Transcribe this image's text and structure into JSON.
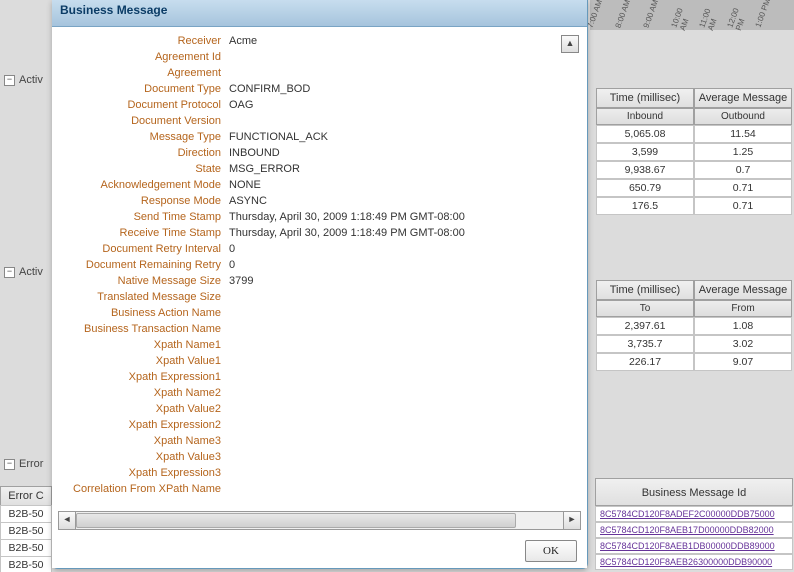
{
  "dialog": {
    "title": "Business Message",
    "ok": "OK",
    "rows": [
      {
        "label": "Receiver",
        "value": "Acme"
      },
      {
        "label": "Agreement Id",
        "value": ""
      },
      {
        "label": "Agreement",
        "value": ""
      },
      {
        "label": "Document Type",
        "value": "CONFIRM_BOD"
      },
      {
        "label": "Document Protocol",
        "value": "OAG"
      },
      {
        "label": "Document Version",
        "value": ""
      },
      {
        "label": "Message Type",
        "value": "FUNCTIONAL_ACK"
      },
      {
        "label": "Direction",
        "value": "INBOUND"
      },
      {
        "label": "State",
        "value": "MSG_ERROR"
      },
      {
        "label": "Acknowledgement Mode",
        "value": "NONE"
      },
      {
        "label": "Response Mode",
        "value": "ASYNC"
      },
      {
        "label": "Send Time Stamp",
        "value": "Thursday, April 30, 2009 1:18:49 PM GMT-08:00"
      },
      {
        "label": "Receive Time Stamp",
        "value": "Thursday, April 30, 2009 1:18:49 PM GMT-08:00"
      },
      {
        "label": "Document Retry Interval",
        "value": "0"
      },
      {
        "label": "Document Remaining Retry",
        "value": "0"
      },
      {
        "label": "Native Message Size",
        "value": "3799"
      },
      {
        "label": "Translated Message Size",
        "value": ""
      },
      {
        "label": "Business Action Name",
        "value": ""
      },
      {
        "label": "Business Transaction Name",
        "value": ""
      },
      {
        "label": "Xpath Name1",
        "value": ""
      },
      {
        "label": "Xpath Value1",
        "value": ""
      },
      {
        "label": "Xpath Expression1",
        "value": ""
      },
      {
        "label": "Xpath Name2",
        "value": ""
      },
      {
        "label": "Xpath Value2",
        "value": ""
      },
      {
        "label": "Xpath Expression2",
        "value": ""
      },
      {
        "label": "Xpath Name3",
        "value": ""
      },
      {
        "label": "Xpath Value3",
        "value": ""
      },
      {
        "label": "Xpath Expression3",
        "value": ""
      },
      {
        "label": "Correlation From XPath Name",
        "value": ""
      }
    ]
  },
  "bg": {
    "activ1": "Activ",
    "activ2": "Activ",
    "error": "Error",
    "errorCol": "Error C",
    "b2b": "B2B-50",
    "bizMsgId": "Business Message Id",
    "table1": {
      "header1": "Time (millisec)",
      "header2": "Average Message",
      "sub1": "Inbound",
      "sub2": "Outbound",
      "rows": [
        [
          "5,065.08",
          "11.54"
        ],
        [
          "3,599",
          "1.25"
        ],
        [
          "9,938.67",
          "0.7"
        ],
        [
          "650.79",
          "0.71"
        ],
        [
          "176.5",
          "0.71"
        ]
      ]
    },
    "table2": {
      "header1": "Time (millisec)",
      "header2": "Average Message",
      "sub1": "To",
      "sub2": "From",
      "rows": [
        [
          "2,397.61",
          "1.08"
        ],
        [
          "3,735.7",
          "3.02"
        ],
        [
          "226.17",
          "9.07"
        ]
      ]
    },
    "msgIds": [
      "8C5784CD120F8ADEF2C00000DDB75000",
      "8C5784CD120F8AEB17D00000DDB82000",
      "8C5784CD120F8AEB1DB00000DDB89000",
      "8C5784CD120F8AEB26300000DDB90000"
    ],
    "ruler": [
      "7:00\nAM",
      "8:00\nAM",
      "9:00\nAM",
      "10:00\nAM",
      "11:00\nAM",
      "12:00\nPM",
      "1:00\nPM"
    ]
  }
}
